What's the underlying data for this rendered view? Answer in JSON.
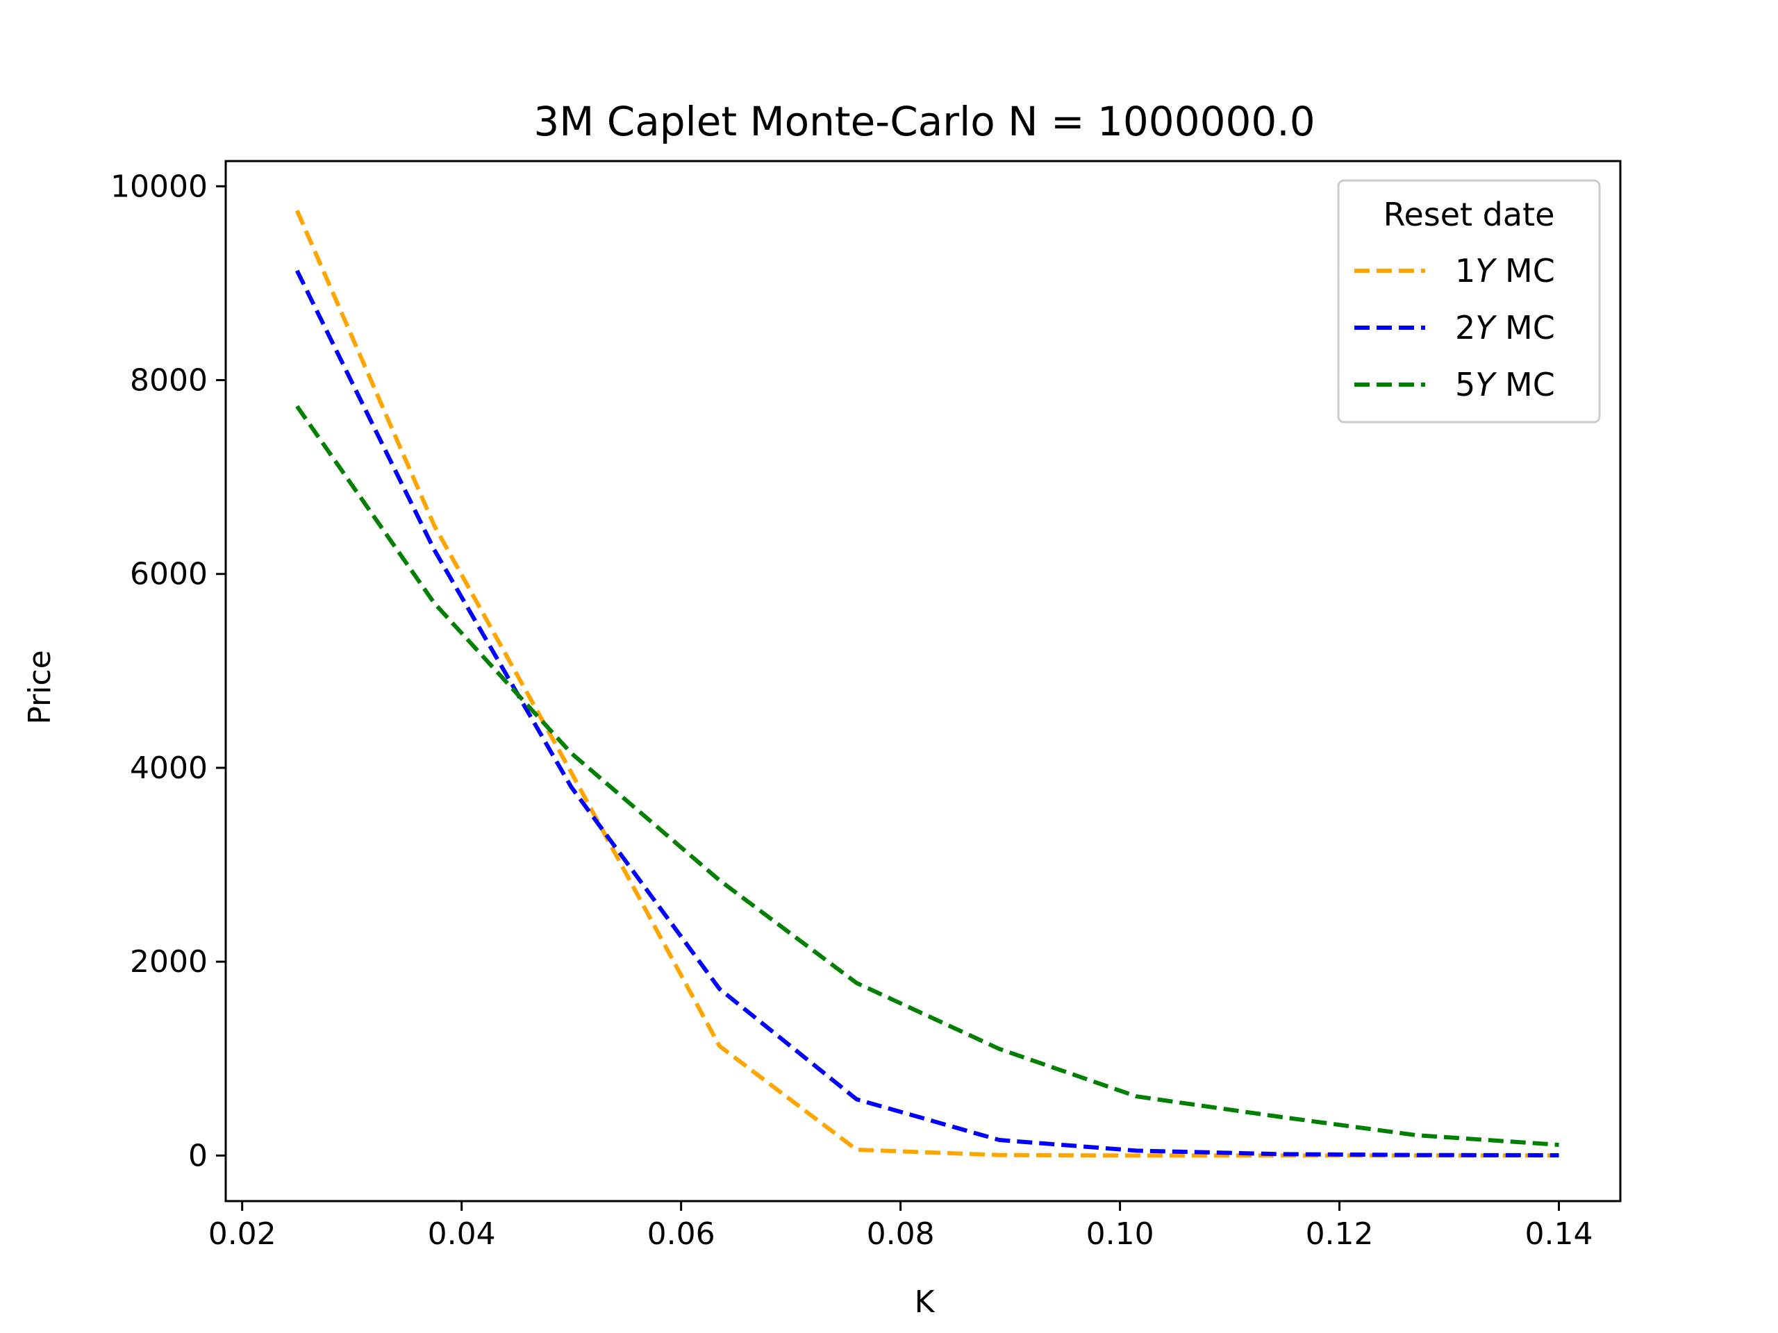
{
  "chart_data": {
    "type": "line",
    "title": "3M Caplet Monte-Carlo N = 1000000.0",
    "xlabel": "K",
    "ylabel": "Price",
    "xlim": [
      0.0185,
      0.1456
    ],
    "ylim": [
      -470,
      10260
    ],
    "xticks": [
      0.02,
      0.04,
      0.06,
      0.08,
      0.1,
      0.12,
      0.14
    ],
    "xtick_labels": [
      "0.02",
      "0.04",
      "0.06",
      "0.08",
      "0.10",
      "0.12",
      "0.14"
    ],
    "yticks": [
      0,
      2000,
      4000,
      6000,
      8000,
      10000
    ],
    "ytick_labels": [
      "0",
      "2000",
      "4000",
      "6000",
      "8000",
      "10000"
    ],
    "grid": false,
    "legend": {
      "title": "Reset date",
      "position": "top-right"
    },
    "x": [
      0.025,
      0.0375,
      0.05,
      0.0635,
      0.076,
      0.089,
      0.1015,
      0.1145,
      0.127,
      0.14
    ],
    "series": [
      {
        "name": "1Y MC",
        "label_prefix": "1",
        "label_italic": "Y",
        "label_suffix": " MC",
        "color": "#FFA500",
        "style": "dashed",
        "values": [
          9750,
          6500,
          3950,
          1130,
          60,
          5,
          0,
          0,
          0,
          0
        ]
      },
      {
        "name": "2Y MC",
        "label_prefix": "2",
        "label_italic": "Y",
        "label_suffix": " MC",
        "color": "#0000FF",
        "style": "dashed",
        "values": [
          9130,
          6250,
          3800,
          1720,
          580,
          160,
          50,
          15,
          5,
          3
        ]
      },
      {
        "name": "5Y MC",
        "label_prefix": "5",
        "label_italic": "Y",
        "label_suffix": " MC",
        "color": "#008000",
        "style": "dashed",
        "values": [
          7730,
          5700,
          4150,
          2840,
          1780,
          1100,
          610,
          400,
          210,
          110
        ]
      }
    ]
  }
}
